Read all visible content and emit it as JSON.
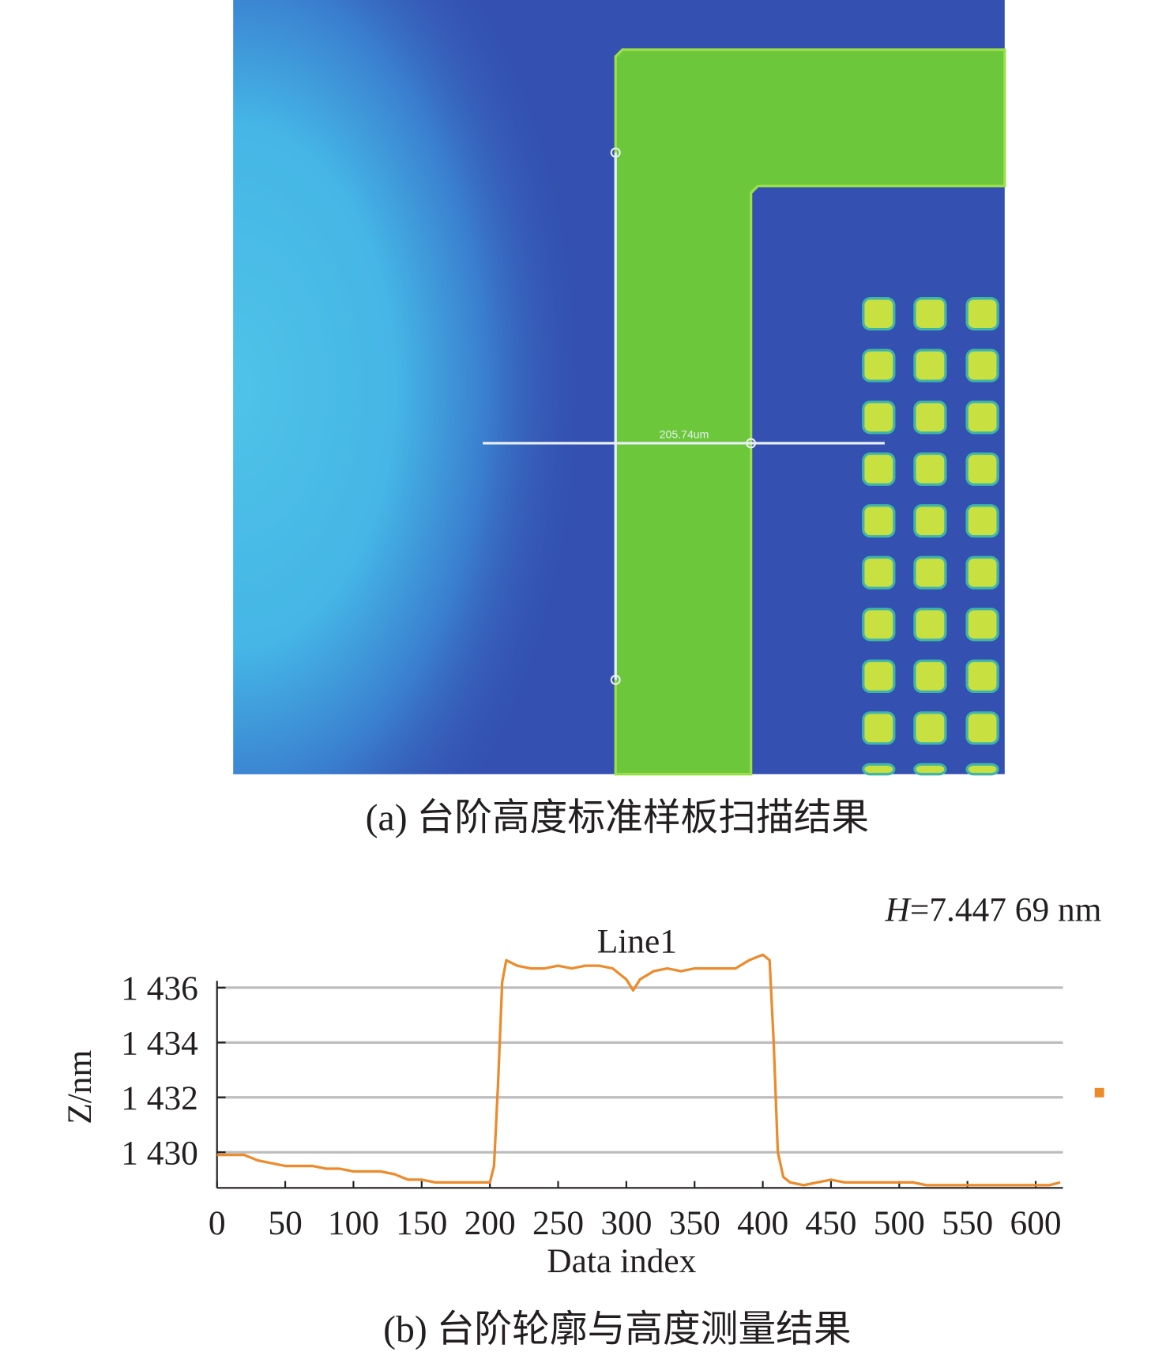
{
  "figure_a": {
    "measurement": "205.74um",
    "caption": "(a) 台阶高度标准样板扫描结果"
  },
  "chart_data": {
    "type": "line",
    "title": "Line1",
    "annotation": {
      "symbol": "H",
      "text": "=7.447 69 nm"
    },
    "xlabel": "Data index",
    "ylabel": "Z/nm",
    "caption": "(b) 台阶轮廓与高度测量结果",
    "xlim": [
      0,
      620
    ],
    "xticks": [
      0,
      50,
      100,
      150,
      200,
      250,
      300,
      350,
      400,
      450,
      500,
      550,
      600
    ],
    "ylim": [
      1428.7,
      1437.3
    ],
    "yticks": [
      {
        "value": 1430,
        "label": "1 430"
      },
      {
        "value": 1432,
        "label": "1 432"
      },
      {
        "value": 1434,
        "label": "1 434"
      },
      {
        "value": 1436,
        "label": "1 436"
      }
    ],
    "grid": true,
    "series": [
      {
        "color": "#ec8b2c",
        "x": [
          0,
          10,
          20,
          30,
          40,
          50,
          60,
          70,
          80,
          90,
          100,
          110,
          120,
          130,
          140,
          150,
          160,
          170,
          180,
          190,
          200,
          203,
          206,
          209,
          212,
          220,
          230,
          240,
          250,
          260,
          270,
          280,
          290,
          300,
          305,
          310,
          320,
          330,
          340,
          350,
          360,
          370,
          380,
          390,
          400,
          405,
          408,
          411,
          415,
          420,
          430,
          440,
          450,
          460,
          470,
          480,
          490,
          500,
          510,
          520,
          530,
          540,
          550,
          560,
          570,
          580,
          590,
          600,
          610,
          618
        ],
        "values": [
          1429.9,
          1429.9,
          1429.9,
          1429.7,
          1429.6,
          1429.5,
          1429.5,
          1429.5,
          1429.4,
          1429.4,
          1429.3,
          1429.3,
          1429.3,
          1429.2,
          1429.0,
          1429.0,
          1428.9,
          1428.9,
          1428.9,
          1428.9,
          1428.9,
          1429.5,
          1432.5,
          1436.2,
          1437.0,
          1436.8,
          1436.7,
          1436.7,
          1436.8,
          1436.7,
          1436.8,
          1436.8,
          1436.7,
          1436.3,
          1435.9,
          1436.3,
          1436.6,
          1436.7,
          1436.6,
          1436.7,
          1436.7,
          1436.7,
          1436.7,
          1437.0,
          1437.2,
          1437.0,
          1434.0,
          1430.0,
          1429.1,
          1428.9,
          1428.8,
          1428.9,
          1429.0,
          1428.9,
          1428.9,
          1428.9,
          1428.9,
          1428.9,
          1428.9,
          1428.8,
          1428.8,
          1428.8,
          1428.8,
          1428.8,
          1428.8,
          1428.8,
          1428.8,
          1428.8,
          1428.8,
          1428.9
        ]
      }
    ]
  }
}
